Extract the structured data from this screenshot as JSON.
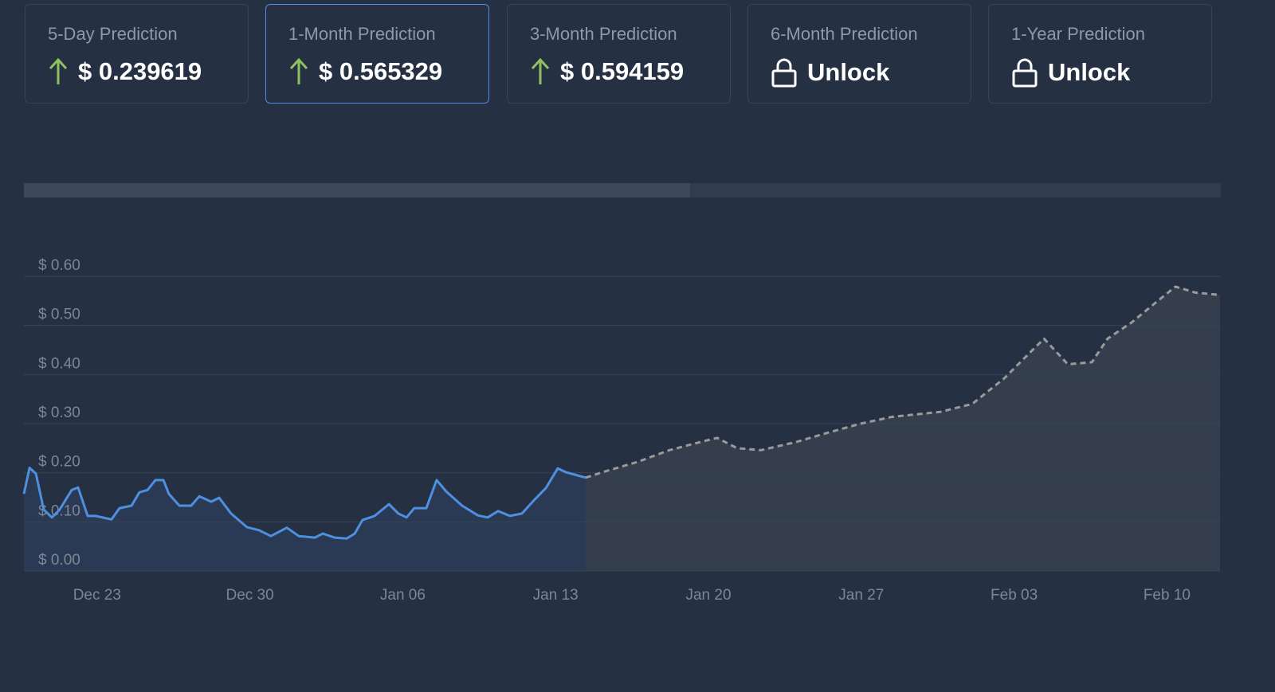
{
  "cards": [
    {
      "label": "5-Day Prediction",
      "value": "$ 0.239619"
    },
    {
      "label": "1-Month Prediction",
      "value": "$ 0.565329"
    },
    {
      "label": "3-Month Prediction",
      "value": "$ 0.594159"
    },
    {
      "label": "6-Month Prediction",
      "value": "Unlock"
    },
    {
      "label": "1-Year Prediction",
      "value": "Unlock"
    }
  ],
  "chart_data": {
    "type": "line",
    "xlim": [
      -3.35,
      51.43
    ],
    "xticks": [
      {
        "value": 0,
        "label": "Dec 23"
      },
      {
        "value": 7,
        "label": "Dec 30"
      },
      {
        "value": 14,
        "label": "Jan 06"
      },
      {
        "value": 21,
        "label": "Jan 13"
      },
      {
        "value": 28,
        "label": "Jan 20"
      },
      {
        "value": 35,
        "label": "Jan 27"
      },
      {
        "value": 42,
        "label": "Feb 03"
      },
      {
        "value": 49,
        "label": "Feb 10"
      }
    ],
    "ylim": [
      0,
      0.6
    ],
    "yticks": [
      {
        "value": 0,
        "label": "$ 0.00"
      },
      {
        "value": 0.1,
        "label": "$ 0.10"
      },
      {
        "value": 0.2,
        "label": "$ 0.20"
      },
      {
        "value": 0.3,
        "label": "$ 0.30"
      },
      {
        "value": 0.4,
        "label": "$ 0.40"
      },
      {
        "value": 0.5,
        "label": "$ 0.50"
      },
      {
        "value": 0.6,
        "label": "$ 0.60"
      }
    ],
    "grid": true,
    "series": [
      {
        "color": "#4f8fe0",
        "area_color": "#2b3a54",
        "line_style": "solid",
        "x": [
          -3.35,
          -3.09,
          -2.8,
          -2.44,
          -2.07,
          -1.71,
          -1.16,
          -0.87,
          -0.43,
          -0.07,
          0.66,
          1.03,
          1.58,
          1.94,
          2.31,
          2.67,
          3.04,
          3.29,
          3.77,
          4.31,
          4.68,
          5.23,
          5.59,
          6.14,
          6.87,
          7.42,
          7.96,
          8.69,
          9.24,
          9.97,
          10.34,
          10.88,
          11.43,
          11.8,
          12.16,
          12.71,
          13.37,
          13.8,
          14.17,
          14.53,
          15.08,
          15.55,
          15.99,
          16.72,
          17.45,
          17.89,
          18.37,
          18.91,
          19.46,
          20.01,
          20.56,
          21.1,
          21.47,
          22.38
        ],
        "values": [
          0.157,
          0.21,
          0.198,
          0.125,
          0.109,
          0.125,
          0.165,
          0.17,
          0.112,
          0.112,
          0.105,
          0.128,
          0.133,
          0.16,
          0.165,
          0.185,
          0.185,
          0.157,
          0.133,
          0.133,
          0.152,
          0.141,
          0.149,
          0.117,
          0.089,
          0.083,
          0.071,
          0.088,
          0.071,
          0.068,
          0.076,
          0.068,
          0.066,
          0.076,
          0.104,
          0.112,
          0.136,
          0.117,
          0.109,
          0.128,
          0.128,
          0.185,
          0.162,
          0.133,
          0.113,
          0.109,
          0.122,
          0.112,
          0.117,
          0.144,
          0.169,
          0.209,
          0.201,
          0.19
        ]
      },
      {
        "color": "#9a9a9a",
        "area_color": "#343e4c",
        "line_style": "dashed",
        "x": [
          22.38,
          23.29,
          24.75,
          26.21,
          27.67,
          28.4,
          29.31,
          30.41,
          32.05,
          33.51,
          34.97,
          36.43,
          38.62,
          40.08,
          41.54,
          42.64,
          43.37,
          44.46,
          45.56,
          46.28,
          47.38,
          48.47,
          49.39,
          50.3,
          51.43
        ],
        "values": [
          0.19,
          0.203,
          0.222,
          0.246,
          0.263,
          0.271,
          0.25,
          0.246,
          0.263,
          0.282,
          0.3,
          0.314,
          0.324,
          0.34,
          0.392,
          0.441,
          0.473,
          0.421,
          0.425,
          0.473,
          0.506,
          0.546,
          0.579,
          0.567,
          0.562
        ]
      }
    ]
  }
}
